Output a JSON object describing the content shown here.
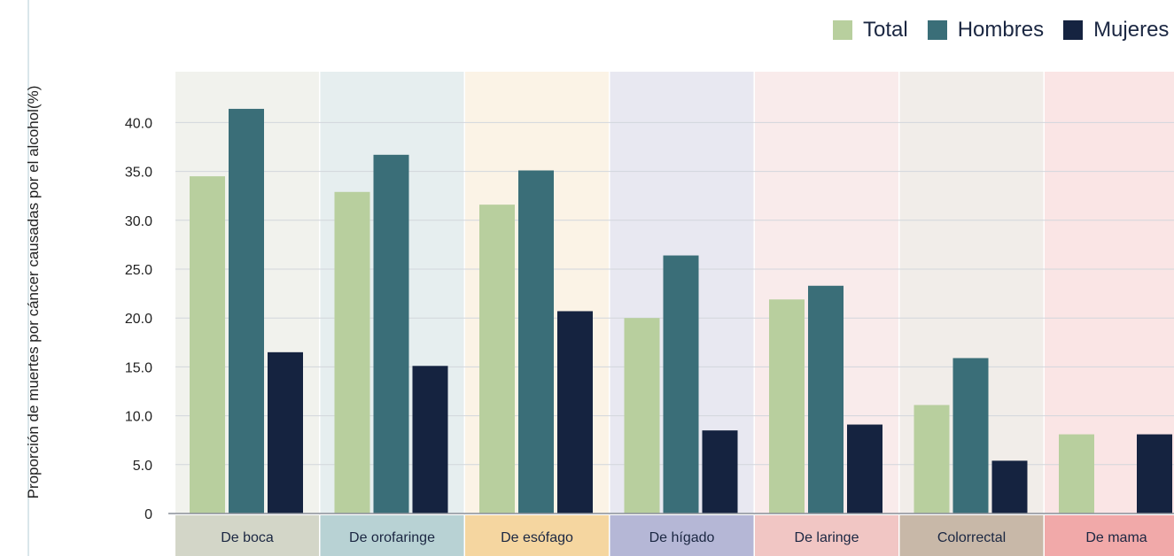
{
  "chart_data": {
    "type": "bar",
    "categories": [
      "De boca",
      "De orofaringe",
      "De esófago",
      "De hígado",
      "De laringe",
      "Colorrectal",
      "De mama"
    ],
    "series": [
      {
        "name": "Total",
        "color": "#b8cf9e",
        "values": [
          34.5,
          32.9,
          31.6,
          20.0,
          21.9,
          11.1,
          8.1
        ]
      },
      {
        "name": "Hombres",
        "color": "#3a6e78",
        "values": [
          41.4,
          36.7,
          35.1,
          26.4,
          23.3,
          15.9,
          null
        ]
      },
      {
        "name": "Mujeres",
        "color": "#152340",
        "values": [
          16.5,
          15.1,
          20.7,
          8.5,
          9.1,
          5.4,
          8.1
        ]
      }
    ],
    "ylabel": "Proporción de muertes por cáncer causadas por el alcohol(%)",
    "ylim": [
      0,
      45
    ],
    "yticks": [
      "0",
      "5.0",
      "10.0",
      "15.0",
      "20.0",
      "25.0",
      "30.0",
      "35.0",
      "40.0"
    ],
    "legend_position": "top-right",
    "grid": true,
    "panel_colors": [
      "#f1f2ed",
      "#e6eeef",
      "#fbf3e6",
      "#e8e8f1",
      "#f9ebeb",
      "#f1ede9",
      "#fae5e5"
    ],
    "label_colors": [
      "#d3d6c8",
      "#b8d2d4",
      "#f5d6a0",
      "#b5b7d6",
      "#f1c6c4",
      "#c8b8a8",
      "#f1a9a9"
    ]
  }
}
